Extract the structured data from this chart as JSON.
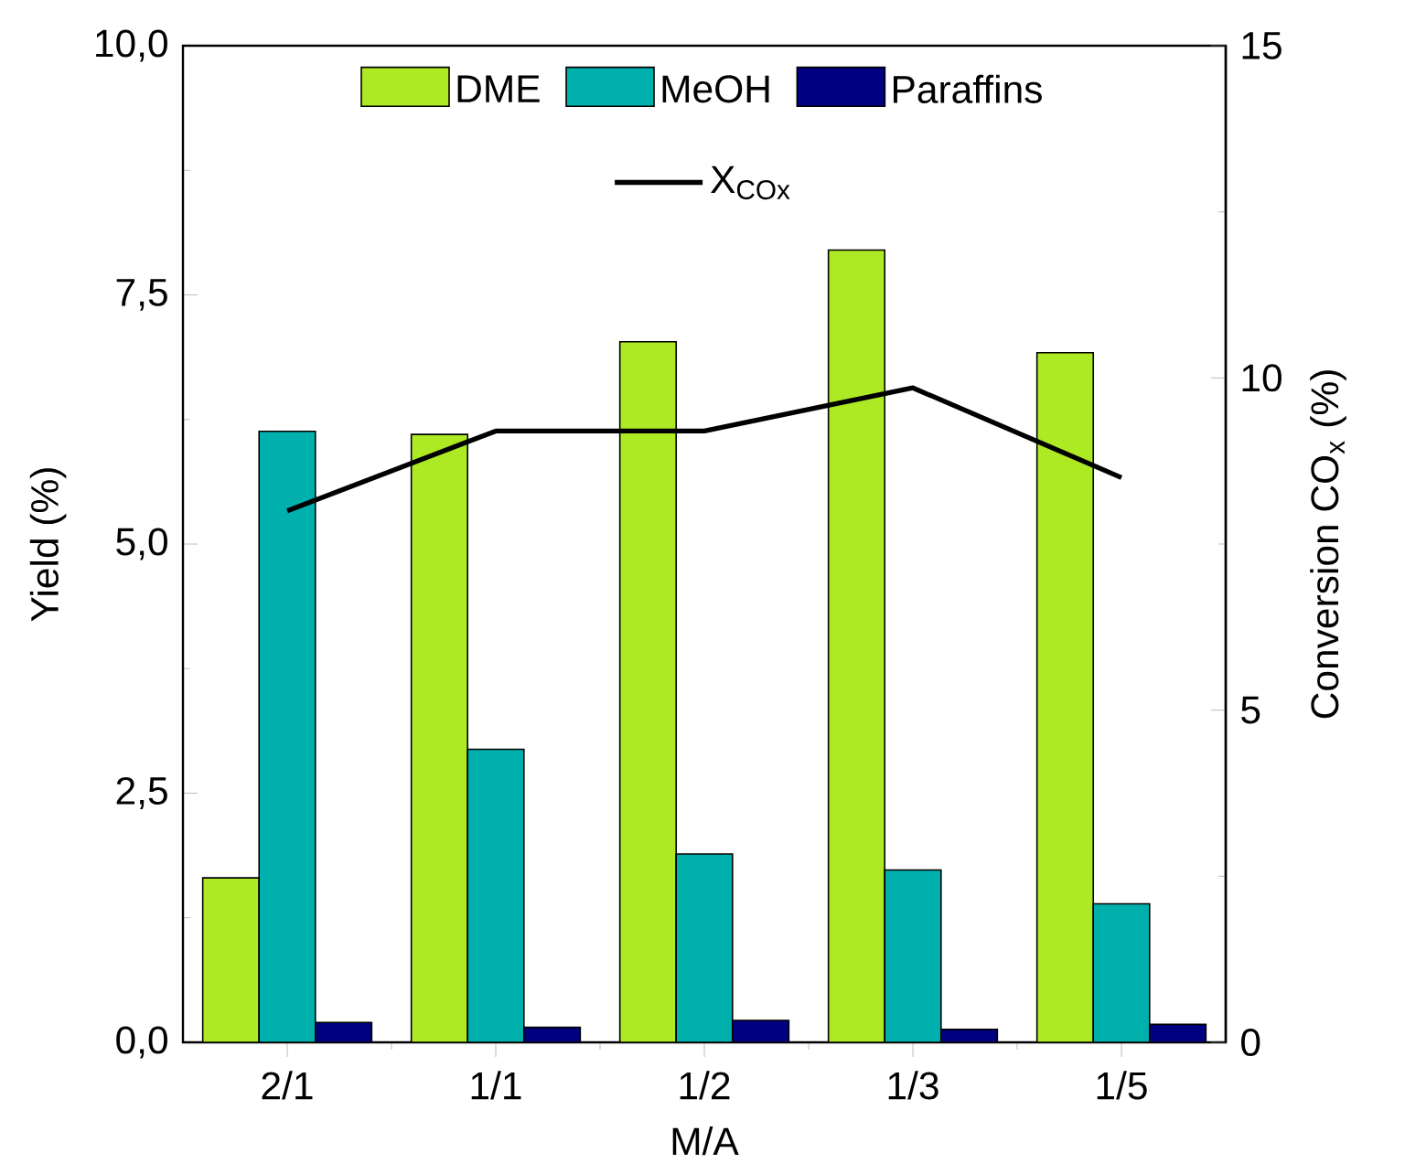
{
  "chart_data": {
    "type": "bar",
    "xlabel": "M/A",
    "ylabel": "Yield (%)",
    "y2label": "Conversion CO$_{x}$ (%)",
    "categories": [
      "2/1",
      "1/1",
      "1/2",
      "1/3",
      "1/5"
    ],
    "series": [
      {
        "name": "DME",
        "color": "#aeea24",
        "values": [
          1.65,
          6.1,
          7.03,
          7.95,
          6.92
        ]
      },
      {
        "name": "MeOH",
        "color": "#00b0ad",
        "values": [
          6.13,
          2.94,
          1.89,
          1.73,
          1.39
        ]
      },
      {
        "name": "Paraffins",
        "color": "#000080",
        "values": [
          0.2,
          0.15,
          0.22,
          0.13,
          0.18
        ]
      },
      {
        "name": "X$_{COx}$",
        "type": "line",
        "axis": "y2",
        "color": "#000000",
        "values": [
          8.0,
          9.2,
          9.2,
          9.85,
          8.5
        ]
      }
    ],
    "ylim": [
      0,
      10
    ],
    "yticks": [
      {
        "value": 0,
        "label": "0,0"
      },
      {
        "value": 2.5,
        "label": "2,5"
      },
      {
        "value": 5,
        "label": "5,0"
      },
      {
        "value": 7.5,
        "label": "7,5"
      },
      {
        "value": 10,
        "label": "10,0"
      }
    ],
    "y2lim": [
      0,
      15
    ],
    "y2ticks": [
      0,
      5,
      10,
      15
    ],
    "legend": "top",
    "marker": "none",
    "line_style": "solid"
  }
}
